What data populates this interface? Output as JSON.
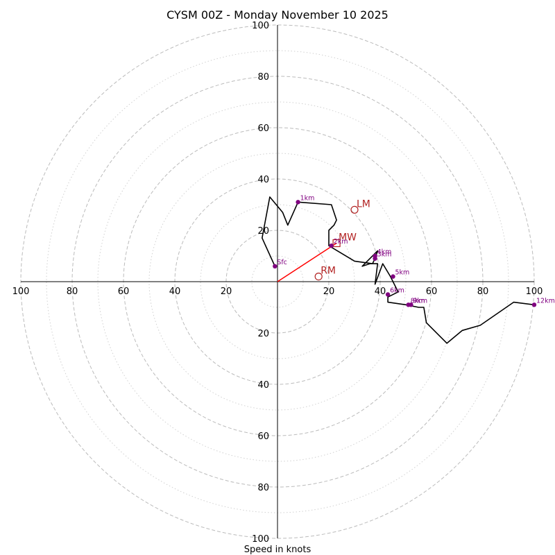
{
  "chart_data": {
    "type": "hodograph",
    "title": "CYSM 00Z - Monday November 10 2025",
    "xlabel": "Speed in knots",
    "units": "knots",
    "range": 100,
    "ring_step": 20,
    "minor_ring_step": 10,
    "tick_labels": {
      "left": [
        "100",
        "80",
        "60",
        "40",
        "20"
      ],
      "right": [
        "20",
        "40",
        "60",
        "80",
        "100"
      ],
      "top": [
        "100",
        "80",
        "60",
        "40",
        "20"
      ],
      "bottom": [
        "20",
        "40",
        "60",
        "80",
        "100"
      ]
    },
    "hodograph_uv": [
      [
        -1,
        6
      ],
      [
        -6,
        17
      ],
      [
        -3,
        33
      ],
      [
        2,
        27
      ],
      [
        4,
        22
      ],
      [
        8,
        31
      ],
      [
        21,
        30
      ],
      [
        23,
        24
      ],
      [
        22,
        22
      ],
      [
        20,
        20
      ],
      [
        20,
        14
      ],
      [
        30,
        8
      ],
      [
        37,
        7
      ],
      [
        38,
        9
      ],
      [
        39,
        12
      ],
      [
        33,
        6
      ],
      [
        36,
        7
      ],
      [
        39,
        7
      ],
      [
        38,
        -1
      ],
      [
        41,
        7
      ],
      [
        44,
        2
      ],
      [
        47,
        -4
      ],
      [
        43,
        -6
      ],
      [
        43,
        -8
      ],
      [
        50,
        -9
      ],
      [
        55,
        -10
      ],
      [
        57,
        -10
      ],
      [
        58,
        -16
      ],
      [
        66,
        -24
      ],
      [
        72,
        -19
      ],
      [
        79,
        -17
      ],
      [
        92,
        -8
      ],
      [
        100,
        -9
      ]
    ],
    "height_markers": [
      {
        "label": "Sfc",
        "u": -1,
        "v": 6
      },
      {
        "label": "1km",
        "u": 8,
        "v": 31
      },
      {
        "label": "2km",
        "u": 21,
        "v": 14
      },
      {
        "label": "3km",
        "u": 38,
        "v": 9
      },
      {
        "label": "4km",
        "u": 38,
        "v": 10
      },
      {
        "label": "5km",
        "u": 45,
        "v": 2
      },
      {
        "label": "6km",
        "u": 43,
        "v": -5
      },
      {
        "label": "8km",
        "u": 51,
        "v": -9
      },
      {
        "label": "9km",
        "u": 52,
        "v": -9
      },
      {
        "label": "12km",
        "u": 100,
        "v": -9
      }
    ],
    "storm_motion": {
      "mean_wind": {
        "label": "MW",
        "u": 23,
        "v": 15
      },
      "left_mover": {
        "label": "LM",
        "u": 30,
        "v": 28
      },
      "right_mover": {
        "label": "RM",
        "u": 16,
        "v": 2
      },
      "shear_vector_color": "#ff0000"
    },
    "colors": {
      "hodograph": "#000000",
      "markers": "#800080",
      "storm_motion": "#b22222",
      "grid": "#bbbbbb"
    }
  }
}
